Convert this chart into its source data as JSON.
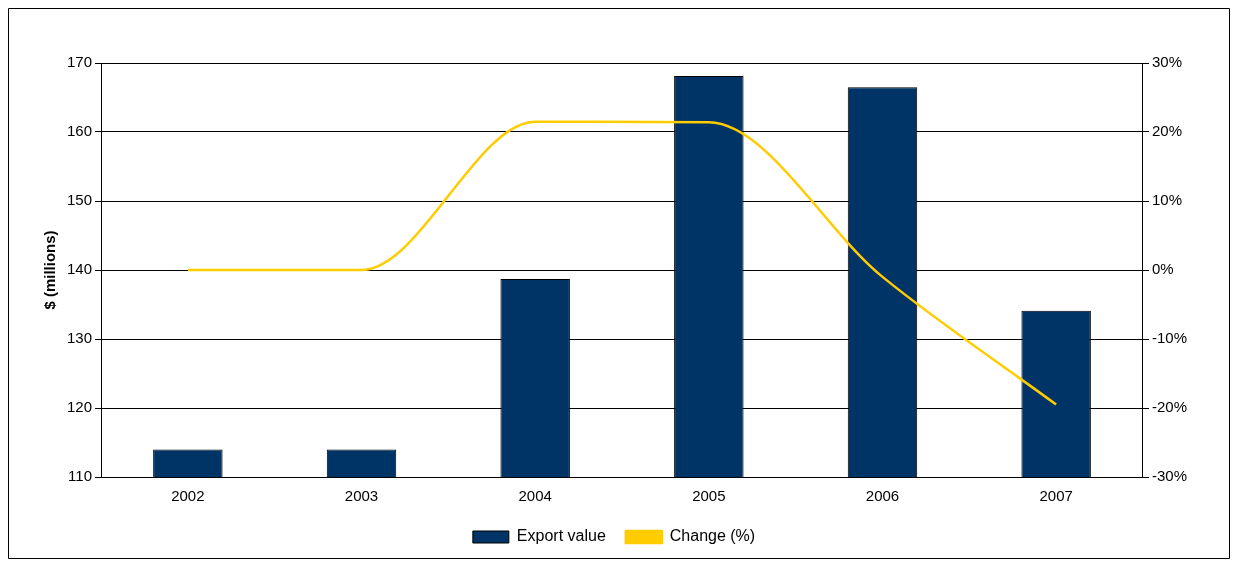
{
  "chart_data": {
    "type": "bar",
    "ylabel": "$ (millions)",
    "categories": [
      "2002",
      "2003",
      "2004",
      "2005",
      "2006",
      "2007"
    ],
    "series": [
      {
        "name": "Export value",
        "color": "#003366",
        "values": [
          114,
          114,
          138.7,
          168.1,
          166.5,
          134.1
        ]
      },
      {
        "name": "Change (%)",
        "type": "line",
        "color": "#ffcc00",
        "axis": "y2",
        "values": [
          0,
          0,
          21.5,
          21.4,
          -1,
          -19.5
        ]
      }
    ],
    "ylim": [
      110,
      170
    ],
    "yticks": [
      110,
      120,
      130,
      140,
      150,
      160,
      170
    ],
    "y2lim": [
      -30,
      30
    ],
    "y2ticks": [
      {
        "value": -30,
        "label": "-30%"
      },
      {
        "value": -20,
        "label": "-20%"
      },
      {
        "value": -10,
        "label": "-10%"
      },
      {
        "value": 0,
        "label": "0%"
      },
      {
        "value": 10,
        "label": "10%"
      },
      {
        "value": 20,
        "label": "20%"
      },
      {
        "value": 30,
        "label": "30%"
      }
    ],
    "grid": "y",
    "legend": "bottom",
    "marker": "none"
  }
}
